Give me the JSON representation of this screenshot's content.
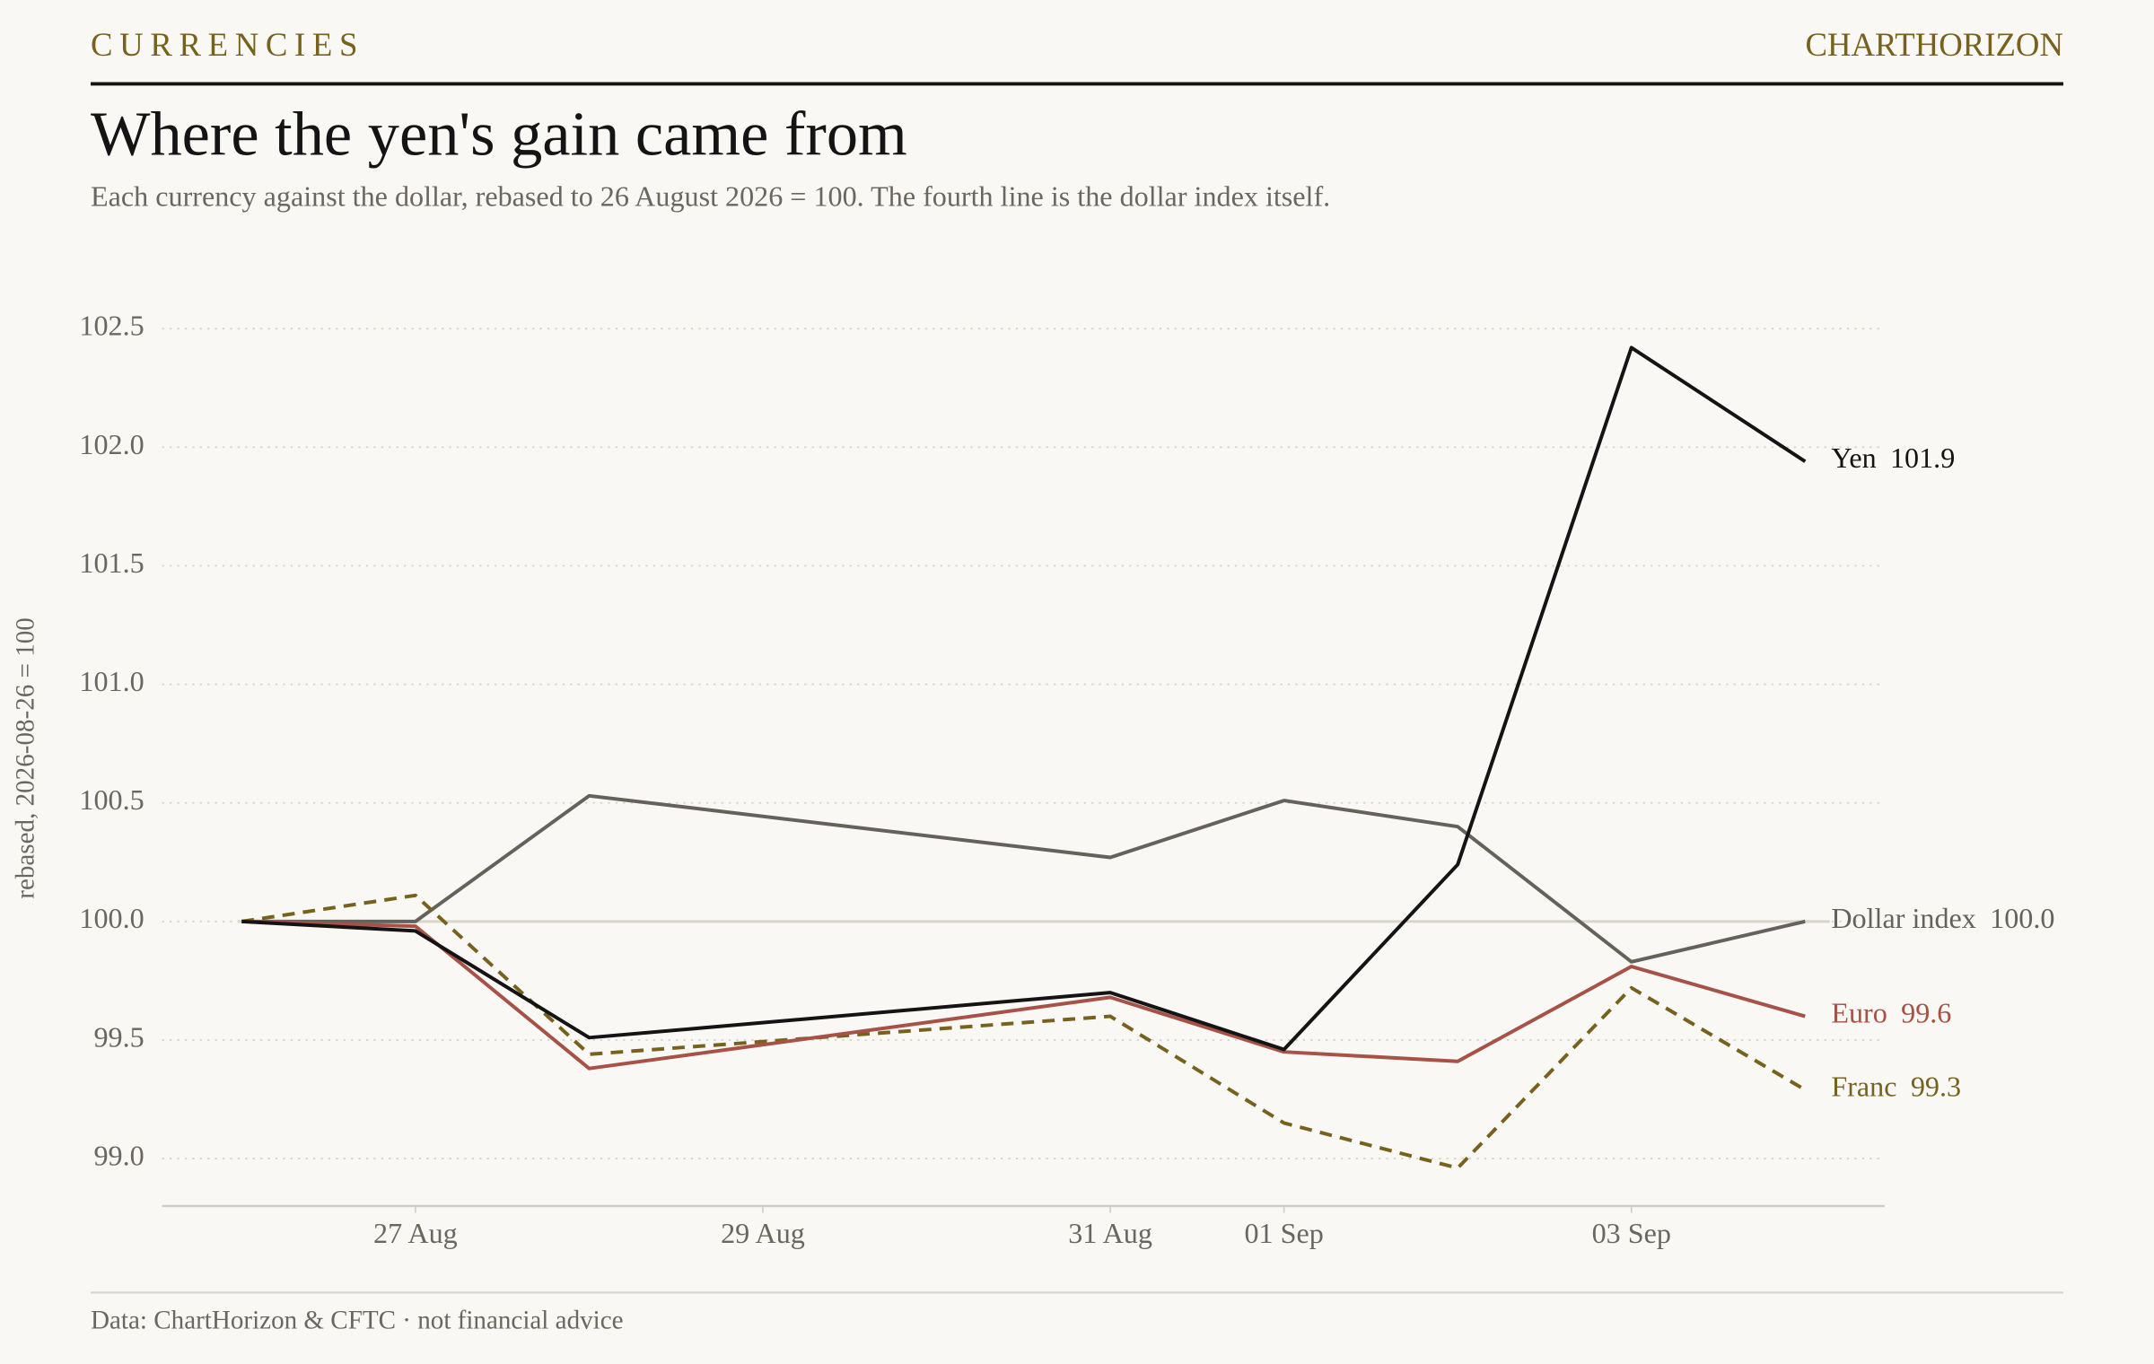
{
  "header": {
    "kicker": "CURRENCIES",
    "brand": "CHARTHORIZON"
  },
  "chart_data": {
    "type": "line",
    "title": "Where the yen's gain came from",
    "subtitle": "Each currency against the dollar, rebased to 26 August 2026 = 100. The fourth line is the dollar index itself.",
    "y_label": "rebased, 2026-08-26 = 100",
    "source": "Data: ChartHorizon & CFTC · not financial advice",
    "x": [
      "2026-08-26",
      "2026-08-27",
      "2026-08-28",
      "2026-08-31",
      "2026-09-01",
      "2026-09-02",
      "2026-09-03",
      "2026-09-04"
    ],
    "xlim": [
      "2026-08-25T13:00Z",
      "2026-09-04T11:00Z"
    ],
    "xticks": [
      {
        "value": "2026-08-27",
        "label": "27 Aug"
      },
      {
        "value": "2026-08-29",
        "label": "29 Aug"
      },
      {
        "value": "2026-08-31",
        "label": "31 Aug"
      },
      {
        "value": "2026-09-01",
        "label": "01 Sep"
      },
      {
        "value": "2026-09-03",
        "label": "03 Sep"
      }
    ],
    "ylim": [
      98.8,
      102.6
    ],
    "yticks": [
      {
        "value": 99,
        "label": "99.0"
      },
      99.5,
      {
        "value": 100,
        "label": "100.0"
      },
      100.5,
      {
        "value": 101,
        "label": "101.0"
      },
      101.5,
      {
        "value": 102,
        "label": "102.0"
      },
      102.5
    ],
    "grid": true,
    "reference_line": 100,
    "series": [
      {
        "name": "Dollar index",
        "color": "#65625b",
        "dashed": false,
        "values": [
          100,
          100.0,
          100.53,
          100.27,
          100.51,
          100.4,
          99.83,
          100.0
        ],
        "value_labels": [
          null,
          null,
          null,
          null,
          null,
          null,
          null,
          "100.0"
        ]
      },
      {
        "name": "Franc",
        "color": "#77621d",
        "dashed": true,
        "values": [
          100,
          100.11,
          99.44,
          99.6,
          99.15,
          98.96,
          99.72,
          99.29
        ],
        "value_labels": [
          null,
          null,
          null,
          null,
          null,
          null,
          null,
          "99.3"
        ]
      },
      {
        "name": "Euro",
        "color": "#a65247",
        "dashed": false,
        "values": [
          100,
          99.98,
          99.38,
          99.68,
          99.45,
          99.41,
          99.81,
          99.6
        ],
        "value_labels": [
          null,
          null,
          null,
          null,
          null,
          null,
          null,
          "99.6"
        ]
      },
      {
        "name": "Yen",
        "color": "#141414",
        "dashed": false,
        "values": [
          100,
          99.96,
          99.51,
          99.7,
          99.46,
          100.24,
          102.42,
          101.94
        ],
        "value_labels": [
          null,
          null,
          null,
          null,
          null,
          null,
          null,
          "101.9"
        ]
      }
    ]
  }
}
